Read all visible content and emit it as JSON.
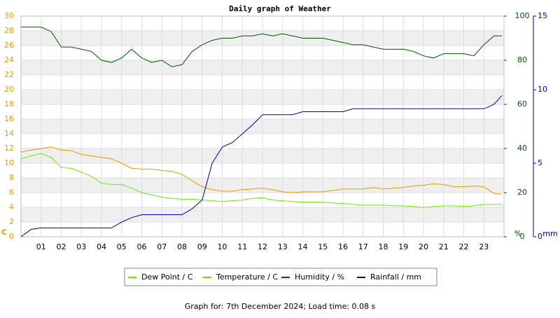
{
  "chart_data": {
    "type": "line",
    "title": "Daily graph of Weather",
    "footer": "Graph for: 7th December 2024; Load time: 0.08 s",
    "ylabel": "C",
    "y2label": "%",
    "y3label": "mm",
    "xlim": [
      0,
      24
    ],
    "xticks": [
      {
        "value": 1,
        "label": "01"
      },
      {
        "value": 2,
        "label": "02"
      },
      {
        "value": 3,
        "label": "03"
      },
      {
        "value": 4,
        "label": "04"
      },
      {
        "value": 5,
        "label": "05"
      },
      {
        "value": 6,
        "label": "06"
      },
      {
        "value": 7,
        "label": "07"
      },
      {
        "value": 8,
        "label": "08"
      },
      {
        "value": 9,
        "label": "09"
      },
      {
        "value": 10,
        "label": "10"
      },
      {
        "value": 11,
        "label": "11"
      },
      {
        "value": 12,
        "label": "12"
      },
      {
        "value": 13,
        "label": "13"
      },
      {
        "value": 14,
        "label": "14"
      },
      {
        "value": 15,
        "label": "15"
      },
      {
        "value": 16,
        "label": "16"
      },
      {
        "value": 17,
        "label": "17"
      },
      {
        "value": 18,
        "label": "18"
      },
      {
        "value": 19,
        "label": "19"
      },
      {
        "value": 20,
        "label": "20"
      },
      {
        "value": 21,
        "label": "21"
      },
      {
        "value": 22,
        "label": "22"
      },
      {
        "value": 23,
        "label": "23"
      }
    ],
    "ylim": [
      0,
      30
    ],
    "yticks": [
      0,
      2,
      4,
      6,
      8,
      10,
      12,
      14,
      16,
      18,
      20,
      22,
      24,
      26,
      28,
      30
    ],
    "y2lim": [
      0,
      100
    ],
    "y2ticks": [
      0,
      20,
      40,
      60,
      80,
      100
    ],
    "y3lim": [
      0,
      15
    ],
    "y3ticks": [
      0,
      5,
      10,
      15
    ],
    "grid": true,
    "x": [
      0,
      0.5,
      1,
      1.5,
      2,
      2.5,
      3,
      3.5,
      4,
      4.5,
      5,
      5.5,
      6,
      6.5,
      7,
      7.5,
      8,
      8.5,
      9,
      9.5,
      10,
      10.5,
      11,
      11.5,
      12,
      12.5,
      13,
      13.5,
      14,
      14.5,
      15,
      15.5,
      16,
      16.5,
      17,
      17.5,
      18,
      18.5,
      19,
      19.5,
      20,
      20.5,
      21,
      21.5,
      22,
      22.5,
      23,
      23.5,
      23.9
    ],
    "series": [
      {
        "name": "Dew Point / C",
        "color": "#66ee00",
        "axis": "y",
        "values": [
          10.6,
          11.0,
          11.3,
          10.8,
          9.4,
          9.3,
          8.8,
          8.2,
          7.3,
          7.1,
          7.1,
          6.6,
          6.0,
          5.7,
          5.4,
          5.2,
          5.1,
          5.1,
          5.0,
          4.9,
          4.8,
          4.9,
          5.0,
          5.2,
          5.3,
          5.0,
          4.9,
          4.8,
          4.7,
          4.7,
          4.7,
          4.6,
          4.5,
          4.4,
          4.3,
          4.3,
          4.3,
          4.2,
          4.2,
          4.1,
          4.0,
          4.1,
          4.2,
          4.2,
          4.1,
          4.2,
          4.4,
          4.4,
          4.4
        ]
      },
      {
        "name": "Temperature / C",
        "color": "#e89a00",
        "axis": "y",
        "values": [
          11.5,
          11.8,
          12.0,
          12.2,
          11.8,
          11.7,
          11.2,
          11.0,
          10.8,
          10.6,
          10.0,
          9.3,
          9.2,
          9.2,
          9.0,
          8.9,
          8.5,
          7.6,
          6.8,
          6.4,
          6.2,
          6.2,
          6.4,
          6.5,
          6.6,
          6.4,
          6.1,
          6.0,
          6.1,
          6.1,
          6.1,
          6.3,
          6.5,
          6.5,
          6.5,
          6.7,
          6.5,
          6.6,
          6.7,
          6.9,
          7.0,
          7.2,
          7.1,
          6.8,
          6.8,
          6.9,
          6.8,
          5.9,
          5.8
        ]
      },
      {
        "name": "Humidity / %",
        "color": "#005500",
        "axis": "y2",
        "values": [
          95,
          95,
          95,
          93,
          86,
          86,
          85,
          84,
          80,
          79,
          81,
          85,
          81,
          79,
          80,
          77,
          78,
          84,
          87,
          89,
          90,
          90,
          91,
          91,
          92,
          91,
          92,
          91,
          90,
          90,
          90,
          89,
          88,
          87,
          87,
          86,
          85,
          85,
          85,
          84,
          82,
          81,
          83,
          83,
          83,
          82,
          87,
          91,
          91
        ]
      },
      {
        "name": "Rainfall / mm",
        "color": "#0000aa",
        "axis": "y3",
        "values": [
          0,
          0.5,
          0.6,
          0.6,
          0.6,
          0.6,
          0.6,
          0.6,
          0.6,
          0.6,
          1.0,
          1.3,
          1.5,
          1.5,
          1.5,
          1.5,
          1.5,
          1.9,
          2.5,
          5.0,
          6.1,
          6.4,
          7.0,
          7.6,
          8.3,
          8.3,
          8.3,
          8.3,
          8.5,
          8.5,
          8.5,
          8.5,
          8.5,
          8.7,
          8.7,
          8.7,
          8.7,
          8.7,
          8.7,
          8.7,
          8.7,
          8.7,
          8.7,
          8.7,
          8.7,
          8.7,
          8.7,
          9.0,
          9.6
        ]
      }
    ]
  }
}
